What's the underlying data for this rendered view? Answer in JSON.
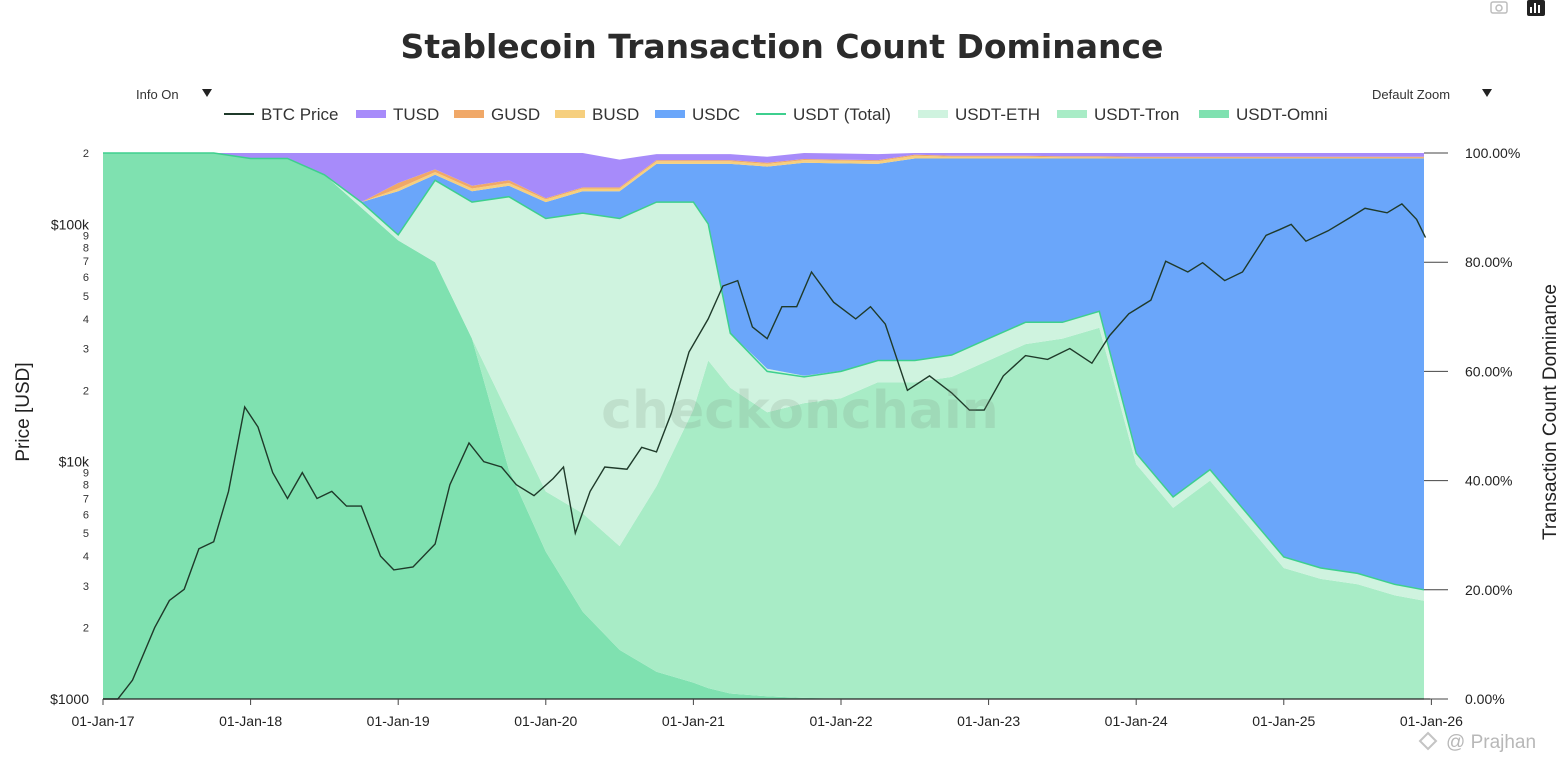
{
  "toolbar": {
    "info_toggle": "Info On",
    "zoom_select": "Default Zoom",
    "camera_icon": "camera-icon",
    "bar_icon": "bar-chart-icon"
  },
  "watermark": "checkonchain",
  "credit": "@ Prajhan",
  "chart_data": {
    "type": "area",
    "title": "Stablecoin Transaction Count Dominance",
    "ylabel_left": "Price [USD]",
    "ylabel_right": "Transaction Count Dominance",
    "left_scale": "log",
    "left_range": [
      1000,
      200000
    ],
    "right_range": [
      0,
      100
    ],
    "x_ticks": [
      "01-Jan-17",
      "01-Jan-18",
      "01-Jan-19",
      "01-Jan-20",
      "01-Jan-21",
      "01-Jan-22",
      "01-Jan-23",
      "01-Jan-24",
      "01-Jan-25",
      "01-Jan-26"
    ],
    "left_ticks": [
      {
        "label": "$1000",
        "major": true
      },
      {
        "label": "2"
      },
      {
        "label": "3"
      },
      {
        "label": "4"
      },
      {
        "label": "5"
      },
      {
        "label": "6"
      },
      {
        "label": "7"
      },
      {
        "label": "8"
      },
      {
        "label": "9"
      },
      {
        "label": "$10k",
        "major": true
      },
      {
        "label": "2"
      },
      {
        "label": "3"
      },
      {
        "label": "4"
      },
      {
        "label": "5"
      },
      {
        "label": "6"
      },
      {
        "label": "7"
      },
      {
        "label": "8"
      },
      {
        "label": "9"
      },
      {
        "label": "$100k",
        "major": true
      },
      {
        "label": "2"
      }
    ],
    "right_ticks": [
      "0.00%",
      "20.00%",
      "40.00%",
      "60.00%",
      "80.00%",
      "100.00%"
    ],
    "legend": [
      {
        "name": "BTC Price",
        "color": "#1f3a2a",
        "kind": "line"
      },
      {
        "name": "TUSD",
        "color": "#a78bfa",
        "kind": "area"
      },
      {
        "name": "GUSD",
        "color": "#f0a868",
        "kind": "area"
      },
      {
        "name": "BUSD",
        "color": "#f6cf7e",
        "kind": "area"
      },
      {
        "name": "USDC",
        "color": "#6aa6fa",
        "kind": "area"
      },
      {
        "name": "USDT (Total)",
        "color": "#3ecf8e",
        "kind": "line"
      },
      {
        "name": "USDT-ETH",
        "color": "#cff3df",
        "kind": "area"
      },
      {
        "name": "USDT-Tron",
        "color": "#a8ecc6",
        "kind": "area"
      },
      {
        "name": "USDT-Omni",
        "color": "#7fe1b0",
        "kind": "area"
      }
    ],
    "dates": [
      2017.0,
      2017.25,
      2017.5,
      2017.75,
      2018.0,
      2018.25,
      2018.5,
      2018.75,
      2019.0,
      2019.25,
      2019.5,
      2019.75,
      2020.0,
      2020.25,
      2020.5,
      2020.75,
      2021.0,
      2021.1,
      2021.25,
      2021.5,
      2021.75,
      2022.0,
      2022.25,
      2022.5,
      2022.75,
      2023.0,
      2023.25,
      2023.5,
      2023.75,
      2024.0,
      2024.25,
      2024.5,
      2024.75,
      2025.0,
      2025.25,
      2025.5,
      2025.75,
      2025.95
    ],
    "series": [
      {
        "name": "USDT-Omni",
        "values": [
          100,
          100,
          100,
          100,
          99,
          99,
          96,
          90,
          84,
          80,
          66,
          42,
          27,
          16,
          9,
          5,
          3,
          2,
          1,
          0.5,
          0.2,
          0.1,
          0,
          0,
          0,
          0,
          0,
          0,
          0,
          0,
          0,
          0,
          0,
          0,
          0,
          0,
          0,
          0
        ]
      },
      {
        "name": "USDT-Tron",
        "values": [
          0,
          0,
          0,
          0,
          0,
          0,
          0,
          0,
          0,
          0,
          0,
          10,
          11,
          18,
          19,
          34,
          50,
          60,
          56,
          52,
          54,
          55,
          58,
          58,
          59,
          62,
          65,
          66,
          68,
          43,
          35,
          40,
          32,
          24,
          22,
          21,
          19,
          18
        ]
      },
      {
        "name": "USDT-ETH",
        "values": [
          0,
          0,
          0,
          0,
          0,
          0,
          0,
          1,
          1,
          15,
          25,
          40,
          50,
          55,
          60,
          52,
          38,
          25,
          10,
          8,
          5,
          5,
          4,
          4,
          4,
          4,
          4,
          3,
          3,
          2,
          2,
          2,
          2,
          2,
          2,
          2,
          2,
          2
        ]
      },
      {
        "name": "USDC",
        "values": [
          0,
          0,
          0,
          0,
          0,
          0,
          0,
          0,
          8,
          1,
          2,
          2,
          3,
          4,
          5,
          7,
          7,
          11,
          31,
          37,
          39,
          38,
          36,
          37,
          36,
          33,
          30,
          30,
          28,
          54,
          62,
          57,
          65,
          73,
          75,
          76,
          78,
          79
        ]
      },
      {
        "name": "BUSD",
        "values": [
          0,
          0,
          0,
          0,
          0,
          0,
          0,
          0,
          0.5,
          0.5,
          0.5,
          0.5,
          0.5,
          0.5,
          0.5,
          0.5,
          0.5,
          0.5,
          0.5,
          0.5,
          0.5,
          0.5,
          0.5,
          0.5,
          0.3,
          0.3,
          0.3,
          0.2,
          0.2,
          0.1,
          0.1,
          0.1,
          0.1,
          0.1,
          0.1,
          0.1,
          0.1,
          0.1
        ]
      },
      {
        "name": "GUSD",
        "values": [
          0,
          0,
          0,
          0,
          0,
          0,
          0,
          0,
          1,
          0.5,
          0.5,
          0.5,
          0.2,
          0.2,
          0.2,
          0.2,
          0.2,
          0.2,
          0.2,
          0.2,
          0.2,
          0.2,
          0.2,
          0.2,
          0.2,
          0.2,
          0.2,
          0.2,
          0.2,
          0.2,
          0.2,
          0.2,
          0.2,
          0.2,
          0.2,
          0.2,
          0.2,
          0.2
        ]
      },
      {
        "name": "TUSD",
        "values": [
          0,
          0,
          0,
          0,
          1,
          1,
          4,
          9,
          5.5,
          3,
          6,
          5,
          9,
          7.3,
          5.1,
          1.1,
          1.1,
          1.1,
          1.1,
          1.1,
          1.1,
          1.1,
          1.1,
          1.1,
          1.1,
          1.1,
          1.1,
          1,
          1,
          1,
          1,
          1,
          1,
          1,
          1,
          1,
          1,
          1
        ]
      }
    ],
    "usdt_total_line": [
      100,
      100,
      100,
      100,
      99,
      99,
      96,
      91,
      85,
      95,
      91,
      92,
      88,
      89,
      88,
      91,
      91,
      87,
      67,
      60,
      59,
      60,
      62,
      62,
      63,
      66,
      69,
      69,
      71,
      45,
      37,
      42,
      34,
      26,
      24,
      23,
      21,
      20
    ],
    "btc_price": [
      [
        2017.0,
        1000
      ],
      [
        2017.1,
        1000
      ],
      [
        2017.2,
        1200
      ],
      [
        2017.35,
        2000
      ],
      [
        2017.45,
        2600
      ],
      [
        2017.55,
        2900
      ],
      [
        2017.65,
        4300
      ],
      [
        2017.75,
        4600
      ],
      [
        2017.85,
        7500
      ],
      [
        2017.96,
        17000
      ],
      [
        2018.05,
        14000
      ],
      [
        2018.15,
        9000
      ],
      [
        2018.25,
        7000
      ],
      [
        2018.35,
        9000
      ],
      [
        2018.45,
        7000
      ],
      [
        2018.55,
        7500
      ],
      [
        2018.65,
        6500
      ],
      [
        2018.75,
        6500
      ],
      [
        2018.88,
        4000
      ],
      [
        2018.97,
        3500
      ],
      [
        2019.1,
        3600
      ],
      [
        2019.25,
        4500
      ],
      [
        2019.35,
        8000
      ],
      [
        2019.48,
        12000
      ],
      [
        2019.58,
        10000
      ],
      [
        2019.7,
        9500
      ],
      [
        2019.8,
        8000
      ],
      [
        2019.92,
        7200
      ],
      [
        2020.05,
        8500
      ],
      [
        2020.12,
        9500
      ],
      [
        2020.2,
        5000
      ],
      [
        2020.3,
        7500
      ],
      [
        2020.4,
        9500
      ],
      [
        2020.55,
        9300
      ],
      [
        2020.65,
        11500
      ],
      [
        2020.75,
        11000
      ],
      [
        2020.85,
        16000
      ],
      [
        2020.97,
        29000
      ],
      [
        2021.1,
        40000
      ],
      [
        2021.2,
        55000
      ],
      [
        2021.3,
        58000
      ],
      [
        2021.4,
        37000
      ],
      [
        2021.5,
        33000
      ],
      [
        2021.6,
        45000
      ],
      [
        2021.7,
        45000
      ],
      [
        2021.8,
        63000
      ],
      [
        2021.95,
        47000
      ],
      [
        2022.1,
        40000
      ],
      [
        2022.2,
        45000
      ],
      [
        2022.3,
        38000
      ],
      [
        2022.45,
        20000
      ],
      [
        2022.6,
        23000
      ],
      [
        2022.75,
        19500
      ],
      [
        2022.87,
        16500
      ],
      [
        2022.97,
        16500
      ],
      [
        2023.1,
        23000
      ],
      [
        2023.25,
        28000
      ],
      [
        2023.4,
        27000
      ],
      [
        2023.55,
        30000
      ],
      [
        2023.7,
        26000
      ],
      [
        2023.82,
        34000
      ],
      [
        2023.95,
        42000
      ],
      [
        2024.1,
        48000
      ],
      [
        2024.2,
        70000
      ],
      [
        2024.35,
        63000
      ],
      [
        2024.45,
        69000
      ],
      [
        2024.6,
        58000
      ],
      [
        2024.72,
        63000
      ],
      [
        2024.88,
        90000
      ],
      [
        2024.97,
        95000
      ],
      [
        2025.05,
        100000
      ],
      [
        2025.15,
        85000
      ],
      [
        2025.3,
        94000
      ],
      [
        2025.45,
        107000
      ],
      [
        2025.55,
        117000
      ],
      [
        2025.7,
        112000
      ],
      [
        2025.8,
        122000
      ],
      [
        2025.9,
        105000
      ],
      [
        2025.96,
        88000
      ]
    ]
  }
}
